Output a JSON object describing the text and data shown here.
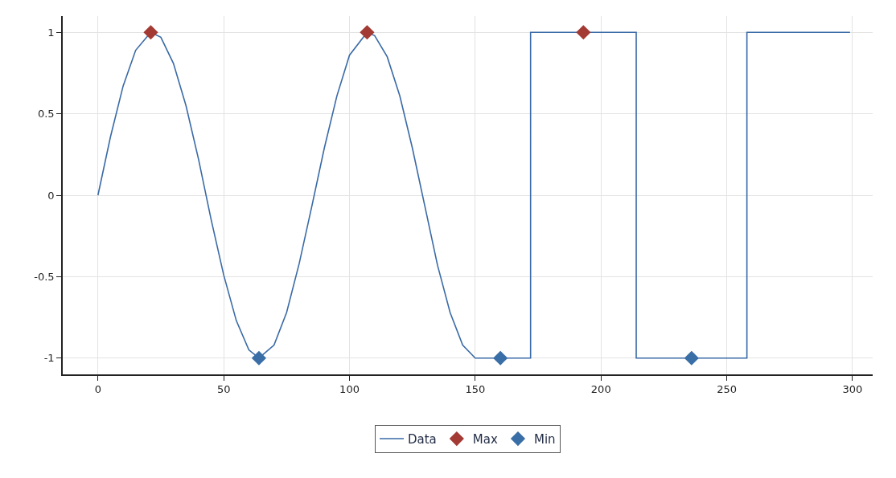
{
  "chart_data": {
    "type": "line",
    "xlim": [
      -14,
      308
    ],
    "xticks": [
      0,
      50,
      100,
      150,
      200,
      250,
      300
    ],
    "ylim": [
      -1.1,
      1.1
    ],
    "yticks": [
      -1,
      -0.5,
      0,
      0.5,
      1
    ],
    "grid": true,
    "legend": "bottom",
    "series": [
      {
        "name": "Data",
        "color": "#3a6aa6",
        "marker": "none",
        "line_style": "solid",
        "x": [
          0,
          5,
          10,
          15,
          21,
          25,
          30,
          35,
          40,
          45,
          50,
          55,
          60,
          64,
          70,
          75,
          80,
          85,
          90,
          95,
          100,
          107,
          110,
          115,
          120,
          125,
          130,
          135,
          140,
          145,
          150,
          172,
          172,
          214,
          214,
          258,
          258,
          299
        ],
        "values": [
          0,
          0.36,
          0.67,
          0.89,
          1,
          0.97,
          0.81,
          0.55,
          0.22,
          -0.15,
          -0.49,
          -0.77,
          -0.95,
          -1,
          -0.92,
          -0.72,
          -0.42,
          -0.07,
          0.29,
          0.61,
          0.86,
          1,
          0.98,
          0.85,
          0.61,
          0.29,
          -0.07,
          -0.43,
          -0.72,
          -0.92,
          -1,
          -1,
          1,
          1,
          -1,
          -1,
          1,
          1
        ]
      },
      {
        "name": "Max",
        "type": "scatter",
        "color": "#a33a33",
        "marker": "diamond",
        "x": [
          21,
          107,
          193
        ],
        "values": [
          1,
          1,
          1
        ]
      },
      {
        "name": "Min",
        "type": "scatter",
        "color": "#3a6ea6",
        "marker": "diamond",
        "x": [
          64,
          160,
          236
        ],
        "values": [
          -1,
          -1,
          -1
        ]
      }
    ]
  }
}
